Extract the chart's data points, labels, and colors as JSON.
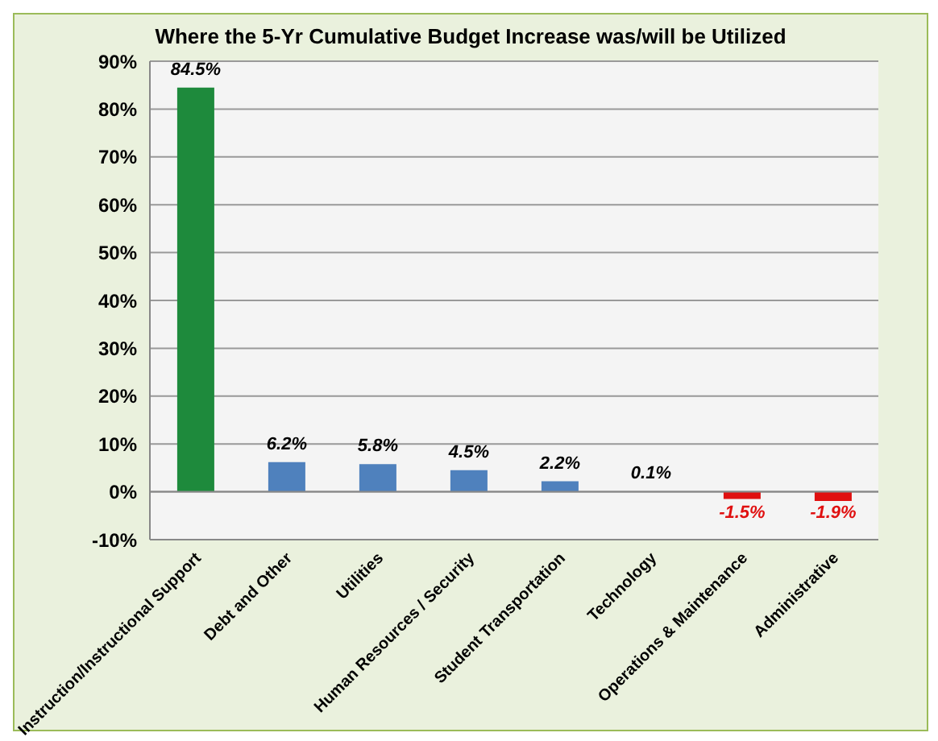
{
  "chart_data": {
    "type": "bar",
    "title": "Where the 5-Yr Cumulative Budget Increase was/will be Utilized",
    "categories": [
      "Instruction/Instructional Support",
      "Debt and Other",
      "Utilities",
      "Human Resources / Security",
      "Student Transportation",
      "Technology",
      "Operations & Maintenance",
      "Administrative"
    ],
    "values": [
      84.5,
      6.2,
      5.8,
      4.5,
      2.2,
      0.1,
      -1.5,
      -1.9
    ],
    "colors": [
      "#1e8a3c",
      "#4f81bd",
      "#4f81bd",
      "#4f81bd",
      "#4f81bd",
      "#1f4e79",
      "#e01010",
      "#e01010"
    ],
    "value_labels": [
      "84.5%",
      "6.2%",
      "5.8%",
      "4.5%",
      "2.2%",
      "0.1%",
      "-1.5%",
      "-1.9%"
    ],
    "ylim": [
      -10,
      90
    ],
    "yticks": [
      {
        "value": -10,
        "label": "-10%"
      },
      {
        "value": 0,
        "label": "0%"
      },
      {
        "value": 10,
        "label": "10%"
      },
      {
        "value": 20,
        "label": "20%"
      },
      {
        "value": 30,
        "label": "30%"
      },
      {
        "value": 40,
        "label": "40%"
      },
      {
        "value": 50,
        "label": "50%"
      },
      {
        "value": 60,
        "label": "60%"
      },
      {
        "value": 70,
        "label": "70%"
      },
      {
        "value": 80,
        "label": "80%"
      },
      {
        "value": 90,
        "label": "90%"
      }
    ],
    "grid": "y"
  }
}
